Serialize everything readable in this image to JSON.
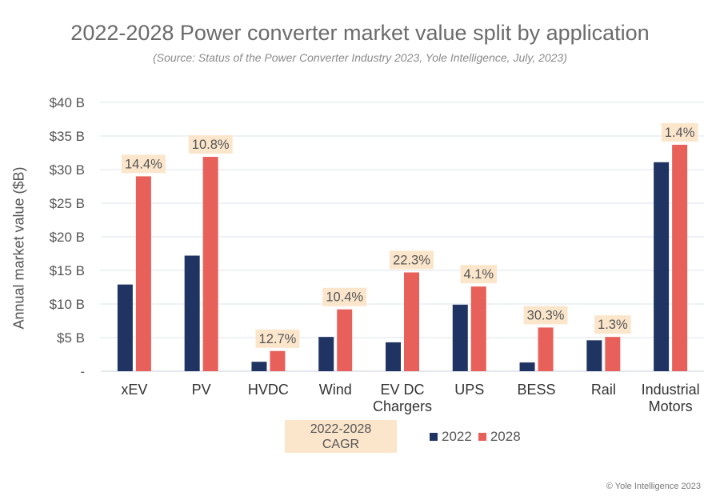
{
  "title": "2022-2028 Power converter market value split by application",
  "subtitle": "(Source:  Status of the Power Converter Industry 2023, Yole Intelligence, July, 2023)",
  "copyright": "© Yole Intelligence 2023",
  "cagr_box": {
    "line1": "2022-2028",
    "line2": "CAGR"
  },
  "colors": {
    "s2022": "#1f3462",
    "s2028": "#e8605a",
    "cagr_bg": "#fbe6cc",
    "grid": "#dde3ee"
  },
  "chart_data": {
    "type": "bar",
    "title": "2022-2028 Power converter market value split by application",
    "ylabel": "Annual market value ($B)",
    "xlabel": "",
    "ylim": [
      0,
      40
    ],
    "yticks": [
      0,
      5,
      10,
      15,
      20,
      25,
      30,
      35,
      40
    ],
    "ytick_labels": [
      "-",
      "$5 B",
      "$10 B",
      "$15 B",
      "$20 B",
      "$25 B",
      "$30 B",
      "$35 B",
      "$40 B"
    ],
    "categories": [
      [
        "xEV"
      ],
      [
        "PV"
      ],
      [
        "HVDC"
      ],
      [
        "Wind"
      ],
      [
        "EV DC",
        "Chargers"
      ],
      [
        "UPS"
      ],
      [
        "BESS"
      ],
      [
        "Rail"
      ],
      [
        "Industrial",
        "Motors"
      ]
    ],
    "series": [
      {
        "name": "2022",
        "values": [
          12.9,
          17.2,
          1.4,
          5.1,
          4.3,
          9.9,
          1.3,
          4.6,
          31.1
        ]
      },
      {
        "name": "2028",
        "values": [
          29.0,
          31.9,
          3.0,
          9.2,
          14.7,
          12.6,
          6.5,
          5.1,
          33.7
        ]
      }
    ],
    "cagr_labels": [
      "14.4%",
      "10.8%",
      "12.7%",
      "10.4%",
      "22.3%",
      "4.1%",
      "30.3%",
      "1.3%",
      "1.4%"
    ],
    "grid": true,
    "legend": "bottom"
  }
}
